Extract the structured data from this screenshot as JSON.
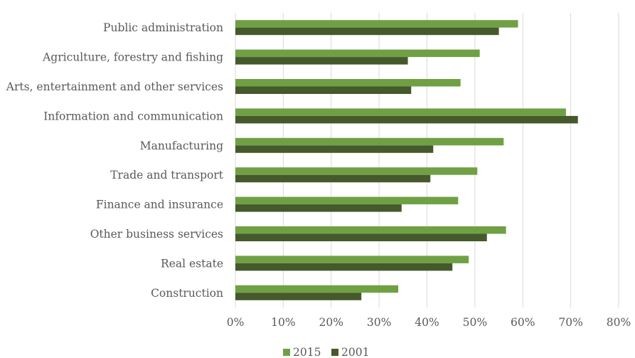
{
  "chart_data": {
    "type": "bar",
    "orientation": "horizontal",
    "title": "",
    "xlabel": "",
    "ylabel": "",
    "categories": [
      "Public administration",
      "Agriculture, forestry and fishing",
      "Arts, entertainment and other services",
      "Information and communication",
      "Manufacturing",
      "Trade and transport",
      "Finance and insurance",
      "Other business services",
      "Real estate",
      "Construction"
    ],
    "series": [
      {
        "name": "2015",
        "color": "#70a044",
        "values": [
          59,
          51,
          47,
          69,
          56,
          50.5,
          46.5,
          56.5,
          48.7,
          34
        ]
      },
      {
        "name": "2001",
        "color": "#45592c",
        "values": [
          55,
          36,
          36.7,
          71.5,
          41.3,
          40.7,
          34.7,
          52.5,
          45.3,
          26.3
        ]
      }
    ],
    "xlim": [
      0,
      80
    ],
    "x_ticks": [
      "0%",
      "10%",
      "20%",
      "30%",
      "40%",
      "50%",
      "60%",
      "70%",
      "80%"
    ],
    "grid": true,
    "legend_position": "bottom"
  }
}
